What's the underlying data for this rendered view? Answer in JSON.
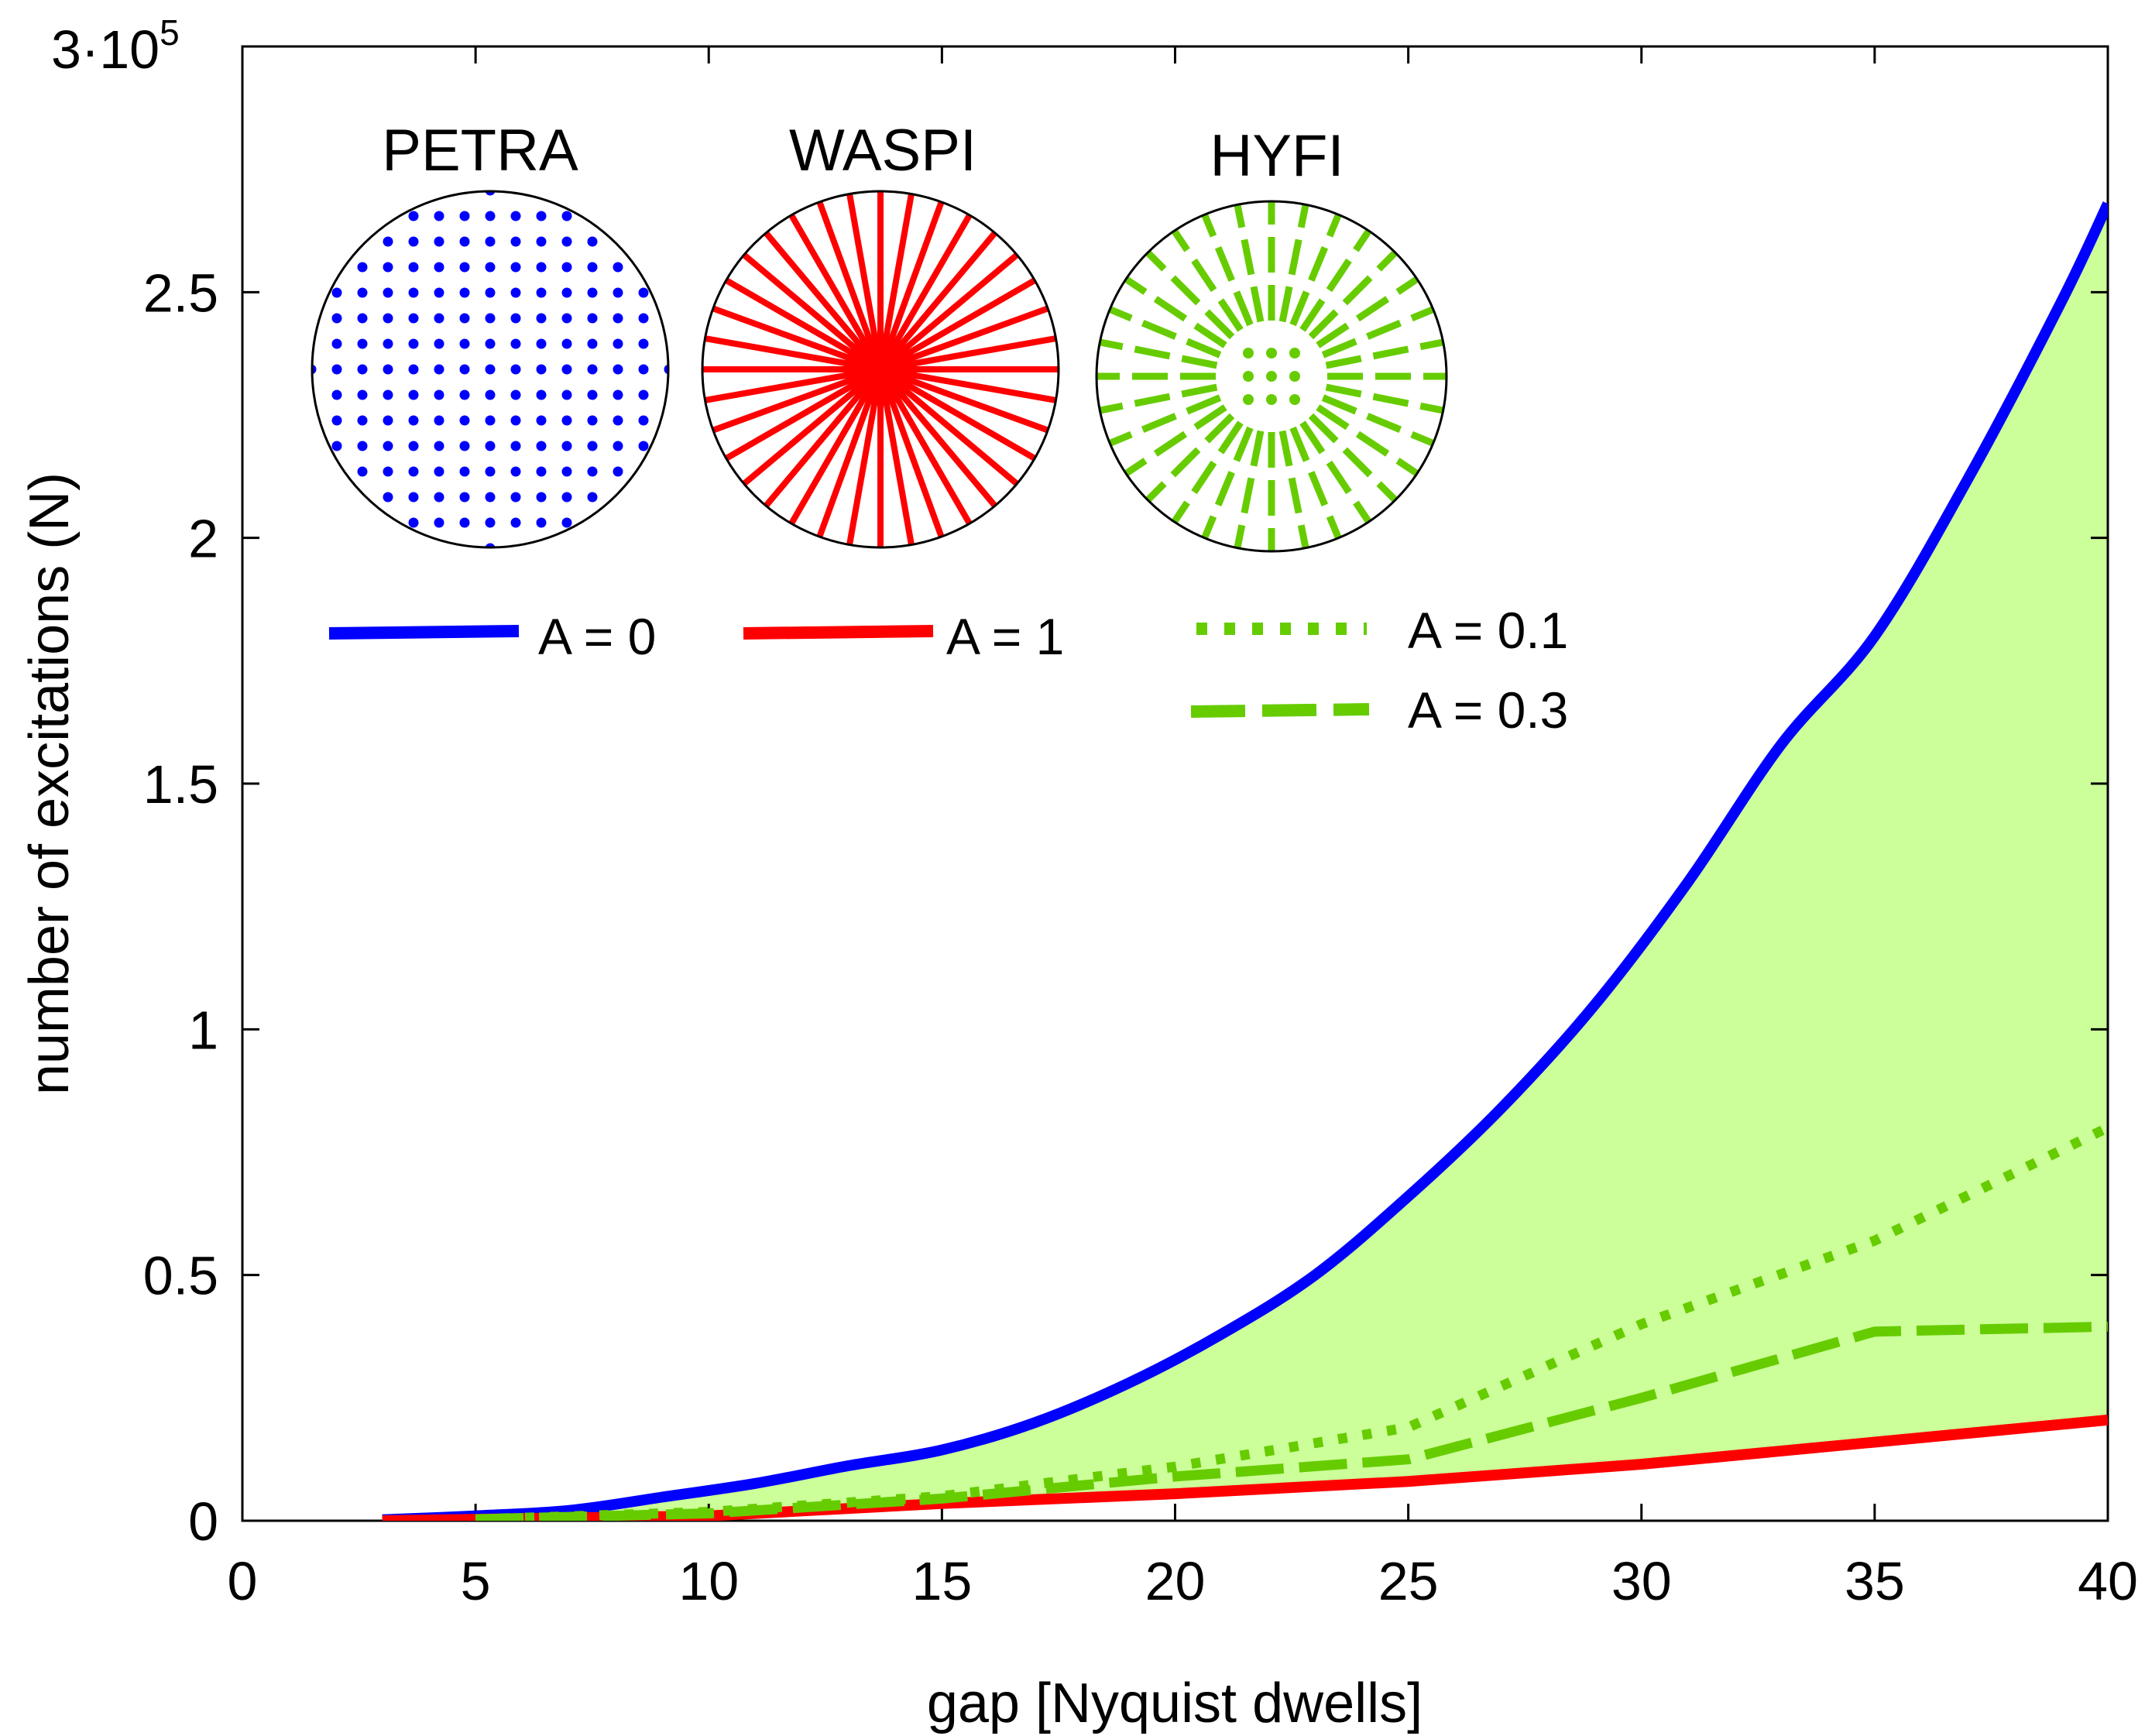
{
  "chart_data": {
    "type": "line",
    "title": "",
    "xlabel": "gap [Nyquist dwells]",
    "ylabel": "number of excitations (N)",
    "xlim": [
      0,
      40
    ],
    "ylim": [
      0,
      300000
    ],
    "y_scale_label": "3·10",
    "y_scale_exponent": "5",
    "xticks": [
      "0",
      "5",
      "10",
      "15",
      "20",
      "25",
      "30",
      "35",
      "40"
    ],
    "yticks": [
      "0",
      "0.5",
      "1",
      "1.5",
      "2",
      "2.5"
    ],
    "grid": false,
    "legend_position": "top-left",
    "fill_between": {
      "upper": "A = 0",
      "lower": "A = 1",
      "color": "#ccff99"
    },
    "series": [
      {
        "name": "A = 0",
        "color": "#0000ff",
        "style": "solid",
        "x": [
          3,
          5,
          7,
          9,
          11,
          13,
          15,
          17,
          19,
          21,
          23,
          25,
          27,
          29,
          31,
          33,
          35,
          37,
          39,
          40
        ],
        "y": [
          200,
          1000,
          2100,
          4800,
          7600,
          11200,
          14400,
          20000,
          28000,
          38000,
          50000,
          66000,
          84000,
          105000,
          130000,
          158000,
          180000,
          212000,
          248000,
          268000
        ]
      },
      {
        "name": "A = 1",
        "color": "#ff0000",
        "style": "solid",
        "x": [
          3,
          5,
          10,
          15,
          20,
          25,
          30,
          35,
          40
        ],
        "y": [
          0,
          300,
          1000,
          3500,
          5500,
          8000,
          11500,
          16000,
          20500
        ]
      },
      {
        "name": "A = 0.1",
        "color": "#66cc00",
        "style": "dotted",
        "x": [
          5,
          10,
          15,
          20,
          25,
          30,
          35,
          40
        ],
        "y": [
          300,
          1800,
          5000,
          11000,
          19000,
          40000,
          57000,
          80000
        ]
      },
      {
        "name": "A = 0.3",
        "color": "#66cc00",
        "style": "dashed",
        "x": [
          5,
          10,
          15,
          20,
          25,
          30,
          35,
          40
        ],
        "y": [
          300,
          1500,
          4500,
          9000,
          12500,
          25000,
          38500,
          39500
        ]
      }
    ],
    "insets": [
      {
        "label": "PETRA",
        "color": "#0000ff",
        "pattern": "cartesian-grid"
      },
      {
        "label": "WASPI",
        "color": "#ff0000",
        "pattern": "radial-spokes"
      },
      {
        "label": "HYFI",
        "color": "#66cc00",
        "pattern": "radial-dashed"
      }
    ]
  }
}
